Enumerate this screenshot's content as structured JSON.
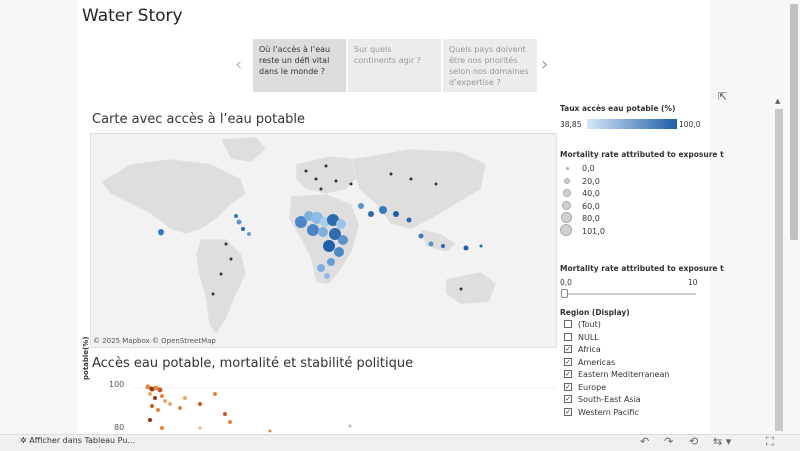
{
  "title": "Water Story",
  "story": {
    "points": [
      "Où l’accès à l’eau reste un défi vital dans le monde ?",
      "Sur quels continents agir ?",
      "Quels pays doivent être nos priorités selon nos domaines d’expertise ?"
    ],
    "prev_icon": "chevron-left-icon",
    "next_icon": "chevron-right-icon"
  },
  "map": {
    "title": "Carte avec accès à l’eau potable",
    "credit": "© 2025 Mapbox  © OpenStreetMap"
  },
  "scatter": {
    "title": "Accès eau potable, mortalité et stabilité politique",
    "ylabel": "potable(%)",
    "yticks": [
      "100",
      "80"
    ]
  },
  "legend": {
    "color_title": "Taux accès eau potable  (%)",
    "color_min": "38,85",
    "color_max": "100,0",
    "size_title": "Mortality rate attributed to exposure t",
    "size_items": [
      "0,0",
      "20,0",
      "40,0",
      "60,0",
      "80,0",
      "101,0"
    ],
    "slider_title": "Mortality rate attributed to exposure t",
    "slider_min": "0,0",
    "slider_max": "10",
    "slider_level": 0,
    "region_title": "Region (Display)",
    "regions": [
      {
        "label": "(Tout)",
        "checked": false
      },
      {
        "label": "NULL",
        "checked": false
      },
      {
        "label": "Africa",
        "checked": true
      },
      {
        "label": "Americas",
        "checked": true
      },
      {
        "label": "Eastern Mediterranean",
        "checked": true
      },
      {
        "label": "Europe",
        "checked": true
      },
      {
        "label": "South-East Asia",
        "checked": true
      },
      {
        "label": "Western Pacific",
        "checked": true
      }
    ]
  },
  "toolbar": {
    "open_label": "Afficher dans Tableau Pu...",
    "icons": [
      "undo-icon",
      "redo-icon",
      "revert-icon",
      "share-icon",
      "fullscreen-icon"
    ]
  },
  "colors": {
    "ramp_low": "#d4e7f7",
    "ramp_high": "#1f5ea8",
    "scatter_orange": "#e8833a",
    "scatter_dark": "#8a3b12"
  }
}
